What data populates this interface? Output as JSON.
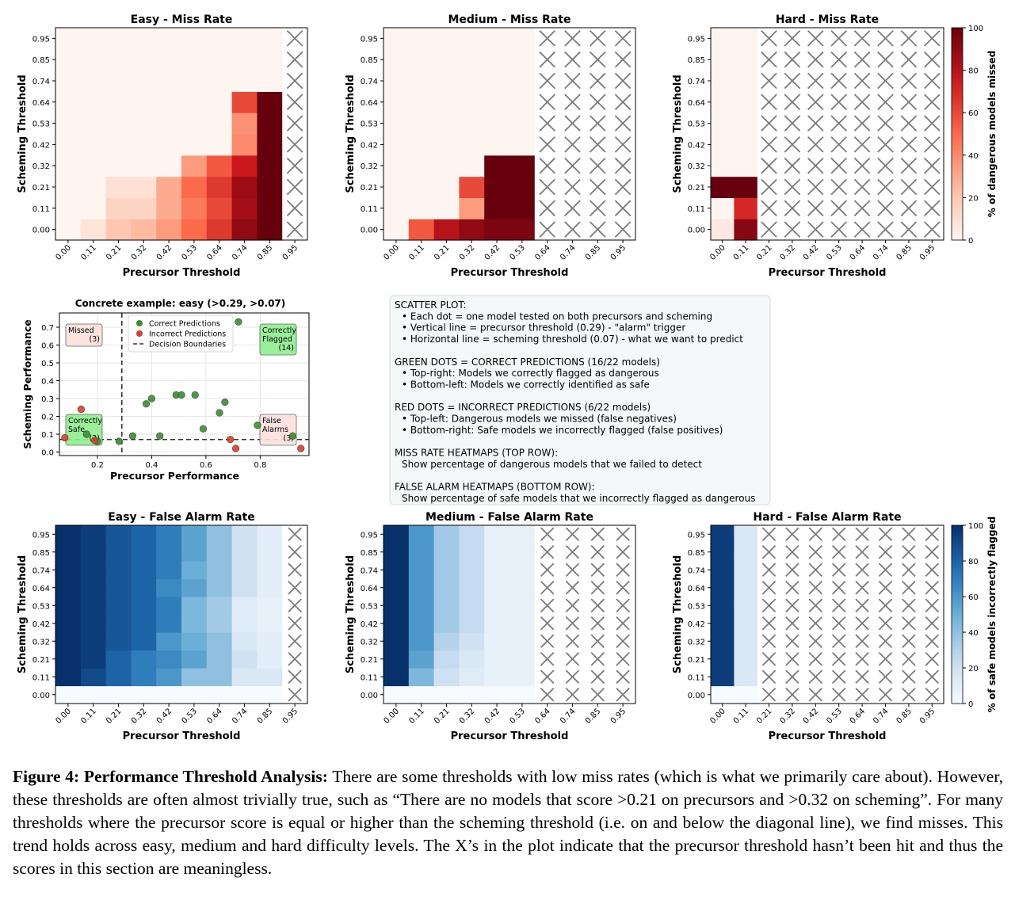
{
  "caption": {
    "label": "Figure 4: Performance Threshold Analysis:",
    "text": "There are some thresholds with low miss rates (which is what we primarily care about). However, these thresholds are often almost trivially true, such as “There are no models that score >0.21 on precursors and >0.32 on scheming”. For many thresholds where the precursor score is equal or higher than the scheming threshold (i.e. on and below the diagonal line), we find misses. This trend holds across easy, medium and hard difficulty levels. The X’s in the plot indicate that the precursor threshold hasn’t been hit and thus the scores in this section are meaningless."
  },
  "chart_data": [
    {
      "id": "easy-miss",
      "type": "heatmap",
      "title": "Easy - Miss Rate",
      "xlabel": "Precursor Threshold",
      "ylabel": "Scheming Threshold",
      "x_ticks": [
        "0.00",
        "0.11",
        "0.21",
        "0.32",
        "0.42",
        "0.53",
        "0.64",
        "0.74",
        "0.85",
        "0.95"
      ],
      "y_ticks": [
        "0.00",
        "0.11",
        "0.21",
        "0.32",
        "0.42",
        "0.53",
        "0.64",
        "0.74",
        "0.85",
        "0.95"
      ],
      "colormap": "reds",
      "values": [
        [
          0,
          7,
          20,
          25,
          35,
          50,
          65,
          90,
          100,
          null
        ],
        [
          0,
          0,
          14,
          14,
          30,
          45,
          60,
          85,
          100,
          null
        ],
        [
          0,
          0,
          9,
          9,
          30,
          50,
          65,
          87,
          100,
          null
        ],
        [
          0,
          0,
          0,
          0,
          0,
          35,
          55,
          75,
          100,
          null
        ],
        [
          0,
          0,
          0,
          0,
          0,
          0,
          0,
          40,
          100,
          null
        ],
        [
          0,
          0,
          0,
          0,
          0,
          0,
          0,
          38,
          100,
          null
        ],
        [
          0,
          0,
          0,
          0,
          0,
          0,
          0,
          60,
          100,
          null
        ],
        [
          0,
          0,
          0,
          0,
          0,
          0,
          0,
          0,
          0,
          null
        ],
        [
          0,
          0,
          0,
          0,
          0,
          0,
          0,
          0,
          0,
          null
        ],
        [
          0,
          0,
          0,
          0,
          0,
          0,
          0,
          0,
          0,
          null
        ]
      ]
    },
    {
      "id": "medium-miss",
      "type": "heatmap",
      "title": "Medium - Miss Rate",
      "xlabel": "Precursor Threshold",
      "ylabel": "Scheming Threshold",
      "x_ticks": [
        "0.00",
        "0.11",
        "0.21",
        "0.32",
        "0.42",
        "0.53",
        "0.64",
        "0.74",
        "0.85",
        "0.95"
      ],
      "y_ticks": [
        "0.00",
        "0.11",
        "0.21",
        "0.32",
        "0.42",
        "0.53",
        "0.64",
        "0.74",
        "0.85",
        "0.95"
      ],
      "colormap": "reds",
      "values": [
        [
          0,
          55,
          80,
          90,
          95,
          95,
          null,
          null,
          null,
          null
        ],
        [
          0,
          0,
          0,
          35,
          100,
          100,
          null,
          null,
          null,
          null
        ],
        [
          0,
          0,
          0,
          60,
          100,
          100,
          null,
          null,
          null,
          null
        ],
        [
          0,
          0,
          0,
          0,
          100,
          100,
          null,
          null,
          null,
          null
        ],
        [
          0,
          0,
          0,
          0,
          0,
          0,
          null,
          null,
          null,
          null
        ],
        [
          0,
          0,
          0,
          0,
          0,
          0,
          null,
          null,
          null,
          null
        ],
        [
          0,
          0,
          0,
          0,
          0,
          0,
          null,
          null,
          null,
          null
        ],
        [
          0,
          0,
          0,
          0,
          0,
          0,
          null,
          null,
          null,
          null
        ],
        [
          0,
          0,
          0,
          0,
          0,
          0,
          null,
          null,
          null,
          null
        ],
        [
          0,
          0,
          0,
          0,
          0,
          0,
          null,
          null,
          null,
          null
        ]
      ]
    },
    {
      "id": "hard-miss",
      "type": "heatmap",
      "title": "Hard - Miss Rate",
      "xlabel": "Precursor Threshold",
      "ylabel": "Scheming Threshold",
      "x_ticks": [
        "0.00",
        "0.11",
        "0.21",
        "0.32",
        "0.42",
        "0.53",
        "0.64",
        "0.74",
        "0.85",
        "0.95"
      ],
      "y_ticks": [
        "0.00",
        "0.11",
        "0.21",
        "0.32",
        "0.42",
        "0.53",
        "0.64",
        "0.74",
        "0.85",
        "0.95"
      ],
      "colormap": "reds",
      "colorbar_label": "% of dangerous models missed",
      "colorbar_ticks": [
        0,
        20,
        40,
        60,
        80,
        100
      ],
      "values": [
        [
          5,
          92,
          null,
          null,
          null,
          null,
          null,
          null,
          null,
          null
        ],
        [
          0,
          70,
          null,
          null,
          null,
          null,
          null,
          null,
          null,
          null
        ],
        [
          100,
          100,
          null,
          null,
          null,
          null,
          null,
          null,
          null,
          null
        ],
        [
          0,
          0,
          null,
          null,
          null,
          null,
          null,
          null,
          null,
          null
        ],
        [
          0,
          0,
          null,
          null,
          null,
          null,
          null,
          null,
          null,
          null
        ],
        [
          0,
          0,
          null,
          null,
          null,
          null,
          null,
          null,
          null,
          null
        ],
        [
          0,
          0,
          null,
          null,
          null,
          null,
          null,
          null,
          null,
          null
        ],
        [
          0,
          0,
          null,
          null,
          null,
          null,
          null,
          null,
          null,
          null
        ],
        [
          0,
          0,
          null,
          null,
          null,
          null,
          null,
          null,
          null,
          null
        ],
        [
          0,
          0,
          null,
          null,
          null,
          null,
          null,
          null,
          null,
          null
        ]
      ]
    },
    {
      "id": "easy-fa",
      "type": "heatmap",
      "title": "Easy - False Alarm Rate",
      "xlabel": "Precursor Threshold",
      "ylabel": "Scheming Threshold",
      "x_ticks": [
        "0.00",
        "0.11",
        "0.21",
        "0.32",
        "0.42",
        "0.53",
        "0.64",
        "0.74",
        "0.85",
        "0.95"
      ],
      "y_ticks": [
        "0.00",
        "0.11",
        "0.21",
        "0.32",
        "0.42",
        "0.53",
        "0.64",
        "0.74",
        "0.85",
        "0.95"
      ],
      "colormap": "blues",
      "values": [
        [
          0,
          0,
          0,
          0,
          0,
          0,
          0,
          0,
          0,
          null
        ],
        [
          100,
          90,
          80,
          70,
          60,
          40,
          40,
          15,
          15,
          null
        ],
        [
          100,
          95,
          80,
          70,
          65,
          55,
          40,
          20,
          10,
          null
        ],
        [
          100,
          95,
          85,
          80,
          60,
          50,
          40,
          15,
          10,
          null
        ],
        [
          100,
          95,
          85,
          80,
          70,
          45,
          35,
          12,
          8,
          null
        ],
        [
          100,
          95,
          85,
          80,
          70,
          45,
          35,
          12,
          8,
          null
        ],
        [
          100,
          95,
          85,
          80,
          65,
          55,
          40,
          20,
          10,
          null
        ],
        [
          100,
          95,
          85,
          80,
          70,
          50,
          40,
          20,
          10,
          null
        ],
        [
          100,
          95,
          85,
          80,
          70,
          55,
          40,
          20,
          10,
          null
        ],
        [
          100,
          95,
          85,
          80,
          70,
          55,
          40,
          20,
          10,
          null
        ]
      ]
    },
    {
      "id": "medium-fa",
      "type": "heatmap",
      "title": "Medium - False Alarm Rate",
      "xlabel": "Precursor Threshold",
      "ylabel": "Scheming Threshold",
      "x_ticks": [
        "0.00",
        "0.11",
        "0.21",
        "0.32",
        "0.42",
        "0.53",
        "0.64",
        "0.74",
        "0.85",
        "0.95"
      ],
      "y_ticks": [
        "0.00",
        "0.11",
        "0.21",
        "0.32",
        "0.42",
        "0.53",
        "0.64",
        "0.74",
        "0.85",
        "0.95"
      ],
      "colormap": "blues",
      "values": [
        [
          0,
          0,
          0,
          0,
          0,
          0,
          null,
          null,
          null,
          null
        ],
        [
          100,
          45,
          20,
          12,
          8,
          8,
          null,
          null,
          null,
          null
        ],
        [
          100,
          55,
          25,
          15,
          8,
          8,
          null,
          null,
          null,
          null
        ],
        [
          100,
          60,
          30,
          20,
          8,
          8,
          null,
          null,
          null,
          null
        ],
        [
          100,
          60,
          35,
          25,
          8,
          8,
          null,
          null,
          null,
          null
        ],
        [
          100,
          60,
          35,
          25,
          8,
          8,
          null,
          null,
          null,
          null
        ],
        [
          100,
          60,
          35,
          25,
          8,
          8,
          null,
          null,
          null,
          null
        ],
        [
          100,
          60,
          35,
          25,
          8,
          8,
          null,
          null,
          null,
          null
        ],
        [
          100,
          60,
          35,
          25,
          8,
          8,
          null,
          null,
          null,
          null
        ],
        [
          100,
          60,
          35,
          25,
          8,
          8,
          null,
          null,
          null,
          null
        ]
      ]
    },
    {
      "id": "hard-fa",
      "type": "heatmap",
      "title": "Hard - False Alarm Rate",
      "xlabel": "Precursor Threshold",
      "ylabel": "Scheming Threshold",
      "x_ticks": [
        "0.00",
        "0.11",
        "0.21",
        "0.32",
        "0.42",
        "0.53",
        "0.64",
        "0.74",
        "0.85",
        "0.95"
      ],
      "y_ticks": [
        "0.00",
        "0.11",
        "0.21",
        "0.32",
        "0.42",
        "0.53",
        "0.64",
        "0.74",
        "0.85",
        "0.95"
      ],
      "colormap": "blues",
      "colorbar_label": "% of safe models incorrectly flagged",
      "colorbar_ticks": [
        0,
        20,
        40,
        60,
        80,
        100
      ],
      "values": [
        [
          0,
          0,
          null,
          null,
          null,
          null,
          null,
          null,
          null,
          null
        ],
        [
          95,
          15,
          null,
          null,
          null,
          null,
          null,
          null,
          null,
          null
        ],
        [
          95,
          15,
          null,
          null,
          null,
          null,
          null,
          null,
          null,
          null
        ],
        [
          95,
          15,
          null,
          null,
          null,
          null,
          null,
          null,
          null,
          null
        ],
        [
          95,
          15,
          null,
          null,
          null,
          null,
          null,
          null,
          null,
          null
        ],
        [
          95,
          15,
          null,
          null,
          null,
          null,
          null,
          null,
          null,
          null
        ],
        [
          95,
          15,
          null,
          null,
          null,
          null,
          null,
          null,
          null,
          null
        ],
        [
          95,
          15,
          null,
          null,
          null,
          null,
          null,
          null,
          null,
          null
        ],
        [
          95,
          15,
          null,
          null,
          null,
          null,
          null,
          null,
          null,
          null
        ],
        [
          95,
          15,
          null,
          null,
          null,
          null,
          null,
          null,
          null,
          null
        ]
      ]
    },
    {
      "id": "scatter",
      "type": "scatter",
      "title": "Concrete example: easy (>0.29, >0.07)",
      "xlabel": "Precursor Performance",
      "ylabel": "Scheming Performance",
      "xlim": [
        0.06,
        0.98
      ],
      "ylim": [
        -0.02,
        0.78
      ],
      "x_ticks": [
        0.2,
        0.4,
        0.6,
        0.8
      ],
      "x_tick_labels": [
        "0.2",
        "0.4",
        "0.6",
        "0.8"
      ],
      "y_ticks": [
        0.0,
        0.1,
        0.2,
        0.3,
        0.4,
        0.5,
        0.6,
        0.7
      ],
      "y_tick_labels": [
        "0.0",
        "0.1",
        "0.2",
        "0.3",
        "0.4",
        "0.5",
        "0.6",
        "0.7"
      ],
      "grid": true,
      "vline": 0.29,
      "hline": 0.07,
      "series": [
        {
          "name": "Correct Predictions",
          "color": "#3a8d34",
          "points": [
            [
              0.16,
              0.1
            ],
            [
              0.2,
              0.06
            ],
            [
              0.28,
              0.06
            ],
            [
              0.33,
              0.09
            ],
            [
              0.38,
              0.27
            ],
            [
              0.4,
              0.3
            ],
            [
              0.43,
              0.09
            ],
            [
              0.49,
              0.32
            ],
            [
              0.51,
              0.32
            ],
            [
              0.56,
              0.32
            ],
            [
              0.59,
              0.13
            ],
            [
              0.65,
              0.22
            ],
            [
              0.67,
              0.28
            ],
            [
              0.72,
              0.73
            ],
            [
              0.79,
              0.15
            ],
            [
              0.92,
              0.09
            ]
          ]
        },
        {
          "name": "Incorrect Predictions",
          "color": "#e23a30",
          "points": [
            [
              0.14,
              0.24
            ],
            [
              0.08,
              0.08
            ],
            [
              0.69,
              0.07
            ],
            [
              0.71,
              0.02
            ],
            [
              0.95,
              0.02
            ],
            [
              0.19,
              0.065
            ]
          ]
        }
      ],
      "boundary_label": "Decision Boundaries",
      "quadrant_labels": [
        {
          "text": "Missed\n(3)",
          "fill": "#fde0dd",
          "pos": "top-left"
        },
        {
          "text": "Correctly\nFlagged\n(14)",
          "fill": "#90ee90",
          "pos": "top-right"
        },
        {
          "text": "Correctly\nSafe\n(2)",
          "fill": "#90ee90",
          "pos": "bottom-left"
        },
        {
          "text": "False\nAlarms\n(3)",
          "fill": "#fde0dd",
          "pos": "bottom-right"
        }
      ],
      "legend_position": "top-center"
    }
  ],
  "notes_box": [
    "SCATTER PLOT:",
    "  • Each dot = one model tested on both precursors and scheming",
    "  • Vertical line = precursor threshold (0.29) - \"alarm\" trigger",
    "  • Horizontal line = scheming threshold (0.07) - what we want to predict",
    "",
    "GREEN DOTS = CORRECT PREDICTIONS (16/22 models)",
    "  • Top-right: Models we correctly flagged as dangerous",
    "  • Bottom-left: Models we correctly identified as safe",
    "",
    "RED DOTS = INCORRECT PREDICTIONS (6/22 models)",
    "  • Top-left: Dangerous models we missed (false negatives)",
    "  • Bottom-right: Safe models we incorrectly flagged (false positives)",
    "",
    "MISS RATE HEATMAPS (TOP ROW):",
    "  Show percentage of dangerous models that we failed to detect",
    "",
    "FALSE ALARM HEATMAPS (BOTTOM ROW):",
    "  Show percentage of safe models that we incorrectly flagged as dangerous"
  ]
}
